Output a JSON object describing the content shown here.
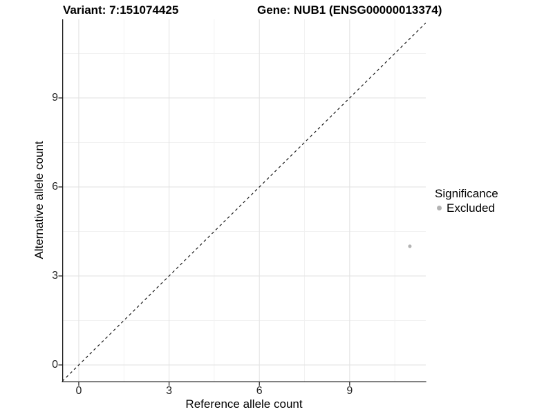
{
  "chart_data": {
    "type": "scatter",
    "titles": [
      "Variant: 7:151074425",
      "Gene: NUB1 (ENSG00000013374)"
    ],
    "xlabel": "Reference allele count",
    "ylabel": "Alternative allele count",
    "xlim": [
      -0.55,
      11.53
    ],
    "ylim": [
      -0.56,
      11.65
    ],
    "x_major_ticks": [
      0,
      3,
      6,
      9
    ],
    "y_major_ticks": [
      0,
      3,
      6,
      9
    ],
    "x_minor_ticks": [
      1.5,
      4.5,
      7.5,
      10.5
    ],
    "y_minor_ticks": [
      1.5,
      4.5,
      7.5,
      10.5
    ],
    "grid": true,
    "series": [
      {
        "name": "Excluded",
        "color": "#b3b3b3",
        "point_radius": 2.5,
        "points": [
          {
            "x": 11,
            "y": 4
          }
        ]
      }
    ],
    "reference_line": {
      "slope": 1,
      "intercept": 0,
      "style": "dashed",
      "color": "#1a1a1a"
    },
    "legend": {
      "position": "right",
      "title": "Significance",
      "items": [
        {
          "label": "Excluded",
          "color": "#b3b3b3"
        }
      ]
    },
    "colors": {
      "background": "#ffffff",
      "grid_major": "#e3e3e3",
      "grid_minor": "#f0f0f0",
      "axis": "#1a1a1a",
      "text": "#000000"
    }
  }
}
